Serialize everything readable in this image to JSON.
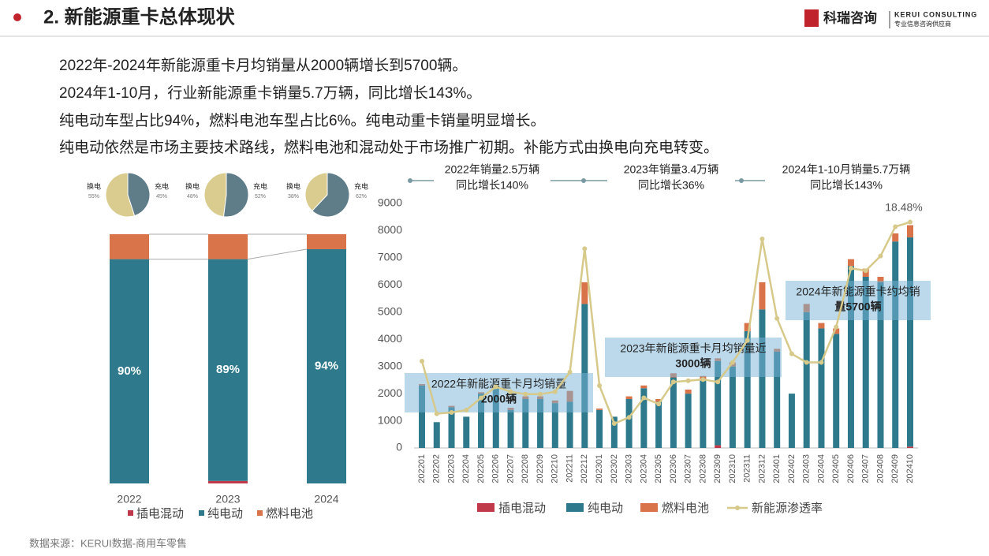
{
  "header": {
    "title": "2. 新能源重卡总体现状",
    "logo": "科瑞咨询",
    "logo_en": "KERUI CONSULTING",
    "logo_sub": "专业信息咨询供应商"
  },
  "bullets": [
    "2022年-2024年新能源重卡月均销量从2000辆增长到5700辆。",
    "2024年1-10月，行业新能源重卡销量5.7万辆，同比增长143%。",
    "纯电动车型占比94%，燃料电池车型占比6%。纯电动重卡销量明显增长。",
    "纯电动依然是市场主要技术路线，燃料电池和混动处于市场推广初期。补能方式由换电向充电转变。"
  ],
  "source": "数据来源：KERUI数据-商用车零售",
  "chart_data": [
    {
      "type": "pie",
      "categories": [
        "换电",
        "充电"
      ],
      "values": [
        55,
        45
      ],
      "value_labels": [
        "55%",
        "45%"
      ],
      "colors": [
        "#d9cc8e",
        "#5f7d88"
      ]
    },
    {
      "type": "pie",
      "categories": [
        "换电",
        "充电"
      ],
      "values": [
        48,
        52
      ],
      "value_labels": [
        "48%",
        "52%"
      ],
      "colors": [
        "#d9cc8e",
        "#5f7d88"
      ]
    },
    {
      "type": "pie",
      "categories": [
        "换电",
        "充电"
      ],
      "values": [
        38,
        62
      ],
      "value_labels": [
        "38%",
        "62%"
      ],
      "colors": [
        "#d9cc8e",
        "#5f7d88"
      ]
    },
    {
      "type": "bar",
      "stacked": true,
      "categories": [
        "2022",
        "2023",
        "2024"
      ],
      "ylim": [
        0,
        100
      ],
      "series": [
        {
          "name": "插电混动",
          "color": "#c0394b",
          "values": [
            0,
            1,
            0
          ]
        },
        {
          "name": "纯电动",
          "color": "#2e7a8c",
          "values": [
            90,
            89,
            94
          ],
          "value_labels": [
            "90%",
            "89%",
            "94%"
          ]
        },
        {
          "name": "燃料电池",
          "color": "#d9734a",
          "values": [
            10,
            10,
            6
          ]
        }
      ]
    },
    {
      "type": "bar",
      "stacked": true,
      "categories": [
        "202201",
        "202202",
        "202203",
        "202204",
        "202205",
        "202206",
        "202207",
        "202208",
        "202209",
        "202210",
        "202211",
        "202212",
        "202301",
        "202302",
        "202303",
        "202304",
        "202305",
        "202306",
        "202307",
        "202308",
        "202309",
        "202310",
        "202311",
        "202312",
        "202401",
        "202402",
        "202403",
        "202404",
        "202405",
        "202406",
        "202407",
        "202408",
        "202409",
        "202410"
      ],
      "ylim": [
        0,
        9000
      ],
      "yticks": [
        0,
        1000,
        2000,
        3000,
        4000,
        5000,
        6000,
        7000,
        8000,
        9000
      ],
      "y2lim": [
        0,
        20
      ],
      "series": [
        {
          "name": "插电混动",
          "color": "#c0394b",
          "values": [
            0,
            0,
            0,
            0,
            0,
            0,
            0,
            0,
            0,
            0,
            0,
            0,
            0,
            0,
            0,
            0,
            0,
            0,
            0,
            0,
            100,
            0,
            0,
            0,
            0,
            0,
            0,
            0,
            0,
            0,
            0,
            0,
            0,
            50
          ]
        },
        {
          "name": "纯电动",
          "color": "#2e7a8c",
          "values": [
            2300,
            950,
            1500,
            1150,
            2000,
            2200,
            1400,
            1800,
            1800,
            1650,
            1700,
            5300,
            1400,
            1150,
            1800,
            2200,
            1700,
            2600,
            2000,
            2500,
            3100,
            3000,
            4300,
            5100,
            3550,
            2000,
            5000,
            4400,
            4200,
            6700,
            6300,
            6100,
            7600,
            7700
          ]
        },
        {
          "name": "燃料电池",
          "color": "#d9734a",
          "values": [
            50,
            0,
            50,
            0,
            50,
            50,
            80,
            100,
            100,
            100,
            400,
            800,
            50,
            0,
            100,
            100,
            100,
            150,
            150,
            150,
            100,
            150,
            300,
            1000,
            100,
            0,
            300,
            200,
            200,
            250,
            300,
            200,
            300,
            450
          ]
        },
        {
          "name": "新能源渗透率",
          "type": "line",
          "axis": "y2",
          "color": "#d6c98a",
          "values": [
            7.1,
            2.8,
            2.9,
            3.1,
            4.1,
            5.0,
            4.6,
            4.4,
            4.4,
            4.6,
            6.2,
            16.3,
            5.1,
            2.0,
            2.5,
            4.1,
            3.6,
            5.4,
            5.5,
            5.6,
            5.4,
            7.0,
            8.8,
            17.1,
            10.6,
            7.7,
            7.0,
            7.0,
            9.9,
            14.7,
            14.5,
            15.7,
            18.1,
            18.48
          ],
          "value_labels": [
            null,
            null,
            null,
            null,
            null,
            null,
            null,
            null,
            null,
            null,
            null,
            null,
            null,
            null,
            null,
            null,
            null,
            null,
            null,
            null,
            null,
            null,
            null,
            null,
            null,
            null,
            null,
            null,
            null,
            null,
            null,
            null,
            null,
            "18.48%"
          ]
        }
      ],
      "callouts": [
        [
          "2022年销量2.5万辆",
          "同比增长140%"
        ],
        [
          "2023年销量3.4万辆",
          "同比增长36%"
        ],
        [
          "2024年1-10月销量5.7万辆",
          "同比增长143%"
        ]
      ],
      "boxes": [
        [
          "2022年新能源重卡月均销量",
          "2000辆"
        ],
        [
          "2023年新能源重卡月均销量近",
          "3000辆"
        ],
        [
          "2024年新能源重卡约均销",
          "量5700辆"
        ]
      ]
    }
  ]
}
